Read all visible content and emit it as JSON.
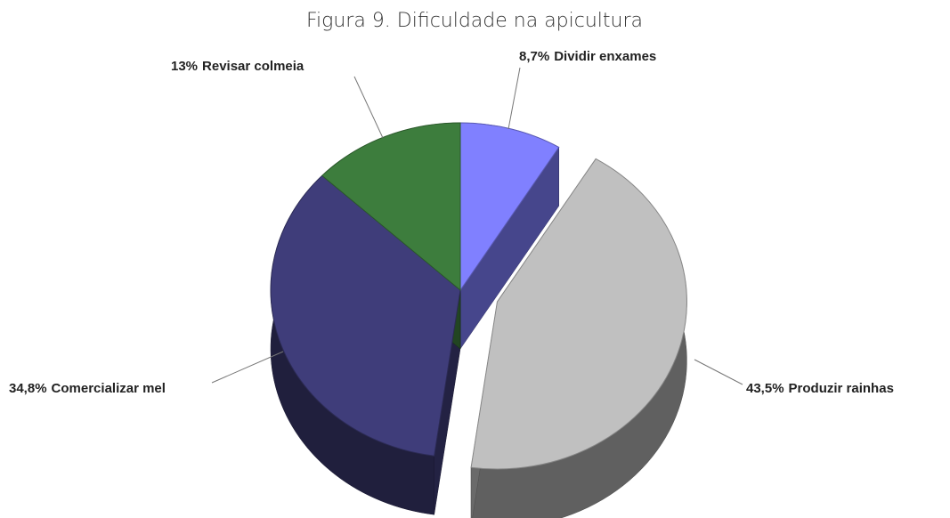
{
  "chart_data": {
    "type": "pie",
    "title": "Figura 9. Dificuldade na apicultura",
    "categories": [
      "Dividir enxames",
      "Produzir rainhas",
      "Comercializar mel",
      "Revisar colmeia"
    ],
    "values": [
      8.7,
      43.5,
      34.8,
      13
    ],
    "value_labels": [
      "8,7%",
      "43,5%",
      "34,8%",
      "13%"
    ],
    "colors": [
      "#8080ff",
      "#c0c0c0",
      "#3f3d7a",
      "#3d7d3d"
    ],
    "exploded": [
      false,
      true,
      false,
      false
    ]
  }
}
